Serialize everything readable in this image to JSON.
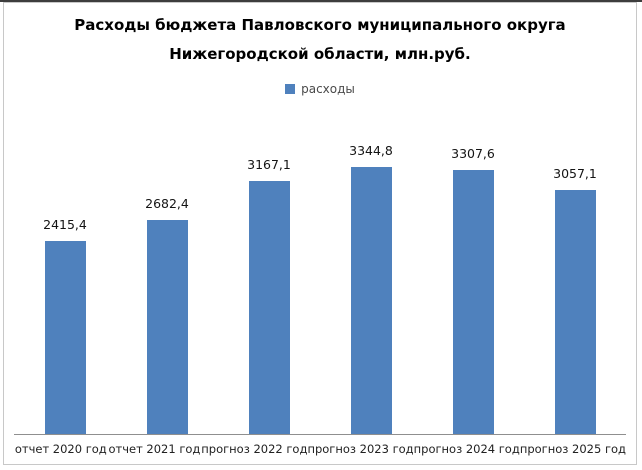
{
  "chart": {
    "title_line1": "Расходы бюджета Павловского муниципального округа",
    "title_line2": "Нижегородской области, млн.руб.",
    "legend": {
      "label": "расходы"
    }
  },
  "chart_data": {
    "type": "bar",
    "title": "Расходы бюджета Павловского муниципального округа Нижегородской области, млн.руб.",
    "categories": [
      "отчет 2020 год",
      "отчет 2021 год",
      "прогноз 2022 год",
      "прогноз 2023 год",
      "прогноз 2024 год",
      "прогноз 2025 год"
    ],
    "series": [
      {
        "name": "расходы",
        "values": [
          2415.4,
          2682.4,
          3167.1,
          3344.8,
          3307.6,
          3057.1
        ]
      }
    ],
    "value_labels": [
      "2415,4",
      "2682,4",
      "3167,1",
      "3344,8",
      "3307,6",
      "3057,1"
    ],
    "bar_color": "#4F81BD",
    "grid": false,
    "legend_position": "top",
    "y_axis_visible": false,
    "data_labels": "above bars, comma decimal separator"
  }
}
